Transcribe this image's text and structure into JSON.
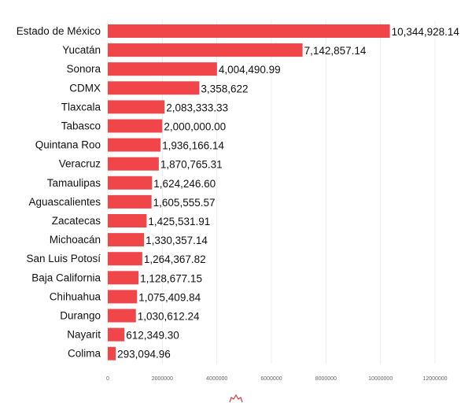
{
  "chart_data": {
    "type": "bar",
    "orientation": "horizontal",
    "title": "",
    "xlabel": "",
    "ylabel": "",
    "xlim": [
      0,
      12000000
    ],
    "grid": true,
    "bar_color": "#f0464a",
    "categories": [
      "Estado de México",
      "Yucatán",
      "Sonora",
      "CDMX",
      "Tlaxcala",
      "Tabasco",
      "Quintana Roo",
      "Veracruz",
      "Tamaulipas",
      "Aguascalientes",
      "Zacatecas",
      "Michoacán",
      "San Luis Potosí",
      "Baja California",
      "Chihuahua",
      "Durango",
      "Nayarit",
      "Colima"
    ],
    "values": [
      10344928.14,
      7142857.14,
      4004490.99,
      3358622,
      2083333.33,
      2000000.0,
      1936166.14,
      1870765.31,
      1624246.6,
      1605555.57,
      1425531.91,
      1330357.14,
      1264367.82,
      1128677.15,
      1075409.84,
      1030612.24,
      612349.3,
      293094.96
    ],
    "value_labels": [
      "10,344,928.14",
      "7,142,857.14",
      "4,004,490.99",
      "3,358,622",
      "2,083,333.33",
      "2,000,000.00",
      "1,936,166.14",
      "1,870,765.31",
      "1,624,246.60",
      "1,605,555.57",
      "1,425,531.91",
      "1,330,357.14",
      "1,264,367.82",
      "1,128,677.15",
      "1,075,409.84",
      "1,030,612.24",
      "612,349.30",
      "293,094.96"
    ],
    "x_ticks": [
      "0",
      "2000000",
      "4000000",
      "6000000",
      "8000000",
      "10000000",
      "12000000"
    ]
  }
}
